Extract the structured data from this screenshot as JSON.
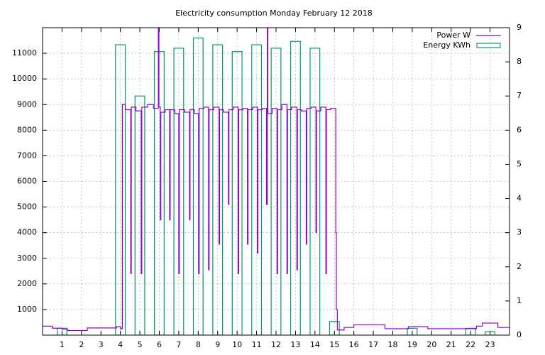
{
  "chart_data": {
    "type": "line",
    "title": "Electricity consumption Monday February 12 2018",
    "xlim": [
      0,
      24
    ],
    "xticks": [
      1,
      2,
      3,
      4,
      5,
      6,
      7,
      8,
      9,
      10,
      11,
      12,
      13,
      14,
      15,
      16,
      17,
      18,
      19,
      20,
      21,
      22,
      23
    ],
    "ylim": [
      0,
      12000
    ],
    "yticks": [
      1000,
      2000,
      3000,
      4000,
      5000,
      6000,
      7000,
      8000,
      9000,
      10000,
      11000
    ],
    "y2lim": [
      0,
      9
    ],
    "y2ticks": [
      0,
      1,
      2,
      3,
      4,
      5,
      6,
      7,
      8,
      9
    ],
    "grid": true,
    "legend": "top-right",
    "series": [
      {
        "name": "Power W",
        "color": "#9400d3",
        "style": "steps",
        "x": [
          0,
          0.5,
          1,
          1.3,
          2.3,
          3.8,
          4.0,
          4.1,
          4.25,
          4.53,
          4.56,
          4.8,
          5.07,
          5.1,
          5.4,
          5.7,
          5.95,
          5.98,
          6.05,
          6.08,
          6.3,
          6.53,
          6.56,
          6.8,
          7.0,
          7.03,
          7.3,
          7.55,
          7.58,
          7.8,
          8.02,
          8.05,
          8.3,
          8.53,
          8.56,
          8.8,
          9.07,
          9.1,
          9.3,
          9.55,
          9.58,
          9.8,
          10.05,
          10.08,
          10.3,
          10.53,
          10.56,
          10.8,
          11.04,
          11.07,
          11.3,
          11.51,
          11.55,
          11.58,
          11.8,
          12.05,
          12.08,
          12.3,
          12.56,
          12.59,
          12.8,
          13.07,
          13.1,
          13.3,
          13.55,
          13.58,
          13.8,
          14.05,
          14.08,
          14.3,
          14.56,
          14.59,
          14.8,
          15.07,
          15.1,
          15.15,
          15.5,
          16.0,
          17.6,
          18.8,
          19.8,
          22.3,
          22.6,
          23.4,
          24
        ],
        "values": [
          350,
          270,
          230,
          180,
          280,
          330,
          250,
          9000,
          8800,
          2400,
          8900,
          8750,
          2400,
          8900,
          9000,
          8850,
          12000,
          8900,
          4500,
          8700,
          8800,
          4500,
          8800,
          8650,
          2400,
          8800,
          8700,
          4500,
          8800,
          8650,
          2400,
          8850,
          8900,
          2550,
          8800,
          8900,
          3550,
          8800,
          8700,
          5100,
          8800,
          8900,
          2400,
          8800,
          8850,
          3550,
          8800,
          8900,
          3200,
          8800,
          8850,
          5100,
          12000,
          8650,
          8850,
          2400,
          8800,
          9000,
          2400,
          8800,
          8900,
          2550,
          8800,
          8750,
          3550,
          8850,
          8900,
          4000,
          8750,
          8900,
          2400,
          8800,
          8850,
          4000,
          1000,
          200,
          300,
          400,
          250,
          330,
          250,
          350,
          470,
          300,
          300
        ]
      },
      {
        "name": "Energy KWh",
        "color": "#009e73",
        "style": "boxes",
        "axis": "y2",
        "x": [
          1,
          4,
          5,
          6,
          7,
          8,
          9,
          10,
          11,
          12,
          13,
          14,
          15,
          19,
          22,
          23
        ],
        "values": [
          0.2,
          8.5,
          7.0,
          8.3,
          8.4,
          8.7,
          8.5,
          8.3,
          8.5,
          8.4,
          8.6,
          8.4,
          0.4,
          0.2,
          0.2,
          0.1
        ]
      }
    ]
  }
}
